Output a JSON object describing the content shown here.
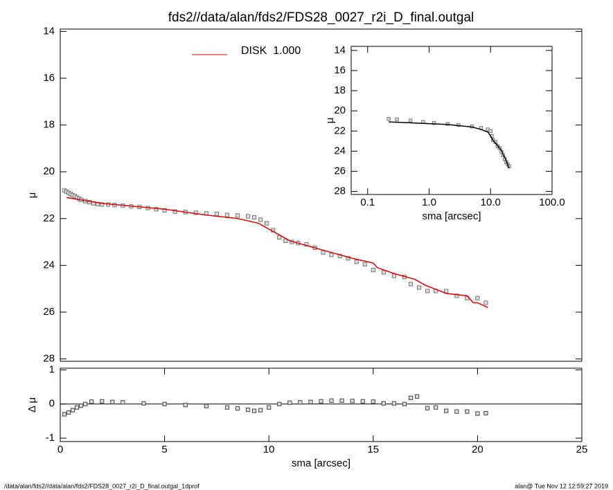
{
  "chart_data": [
    {
      "type": "scatter",
      "title": "fds2//data/alan/fds2/FDS28_0027_r2i_D_final.outgal",
      "ylabel": "μ",
      "xlim": [
        0,
        25
      ],
      "ylim": [
        28.1,
        13.9
      ],
      "yticks": [
        14,
        16,
        18,
        20,
        22,
        24,
        26,
        28
      ],
      "legend": "top",
      "series": [
        {
          "type": "marker",
          "color": "#777777",
          "x": [
            0.2,
            0.3,
            0.4,
            0.5,
            0.6,
            0.7,
            0.8,
            0.9,
            1.0,
            1.2,
            1.4,
            1.6,
            1.8,
            2.0,
            2.3,
            2.6,
            3.0,
            3.4,
            3.8,
            4.2,
            4.6,
            5.0,
            5.5,
            6.0,
            6.5,
            7.0,
            7.5,
            8.0,
            8.5,
            9.0,
            9.3,
            9.6,
            9.9,
            10.2,
            10.5,
            10.8,
            11.1,
            11.4,
            11.8,
            12.2,
            12.6,
            13.0,
            13.4,
            13.8,
            14.2,
            14.6,
            15.0,
            15.5,
            16.0,
            16.5,
            16.8,
            17.2,
            17.6,
            18.0,
            18.5,
            19.0,
            19.5,
            20.0,
            20.4
          ],
          "values": [
            20.8,
            20.85,
            20.9,
            20.95,
            21.0,
            21.05,
            21.1,
            21.15,
            21.2,
            21.25,
            21.3,
            21.35,
            21.38,
            21.4,
            21.4,
            21.42,
            21.45,
            21.48,
            21.5,
            21.55,
            21.6,
            21.65,
            21.7,
            21.72,
            21.75,
            21.78,
            21.8,
            21.85,
            21.87,
            21.9,
            21.95,
            22.05,
            22.2,
            22.5,
            22.8,
            22.95,
            23.0,
            23.05,
            23.1,
            23.25,
            23.45,
            23.55,
            23.6,
            23.7,
            23.85,
            23.95,
            24.2,
            24.3,
            24.45,
            24.5,
            24.8,
            24.95,
            25.1,
            25.1,
            25.1,
            25.3,
            25.4,
            25.4,
            25.6
          ]
        },
        {
          "type": "line",
          "name": "DISK  1.000",
          "color": "#e00000",
          "x": [
            0.3,
            2,
            5,
            7,
            8.5,
            9.5,
            10.5,
            11,
            12,
            13,
            14,
            15,
            15.2,
            16,
            17,
            17.5,
            18.5,
            19.5,
            19.8,
            20,
            20.5
          ],
          "values": [
            21.1,
            21.35,
            21.6,
            21.85,
            22.0,
            22.2,
            22.7,
            22.95,
            23.2,
            23.45,
            23.7,
            23.9,
            24.1,
            24.35,
            24.6,
            24.85,
            25.2,
            25.3,
            25.6,
            25.6,
            25.8
          ]
        }
      ]
    },
    {
      "type": "scatter",
      "xlabel": "sma [arcsec]",
      "ylabel": "μ",
      "xlog": true,
      "xlim": [
        0.054,
        100
      ],
      "ylim": [
        28.3,
        13.6
      ],
      "xticks": [
        {
          "value": 0.1,
          "label": "0.1"
        },
        {
          "value": 1,
          "label": "1.0"
        },
        {
          "value": 10,
          "label": "10.0"
        },
        {
          "value": 100,
          "label": "100.0"
        }
      ],
      "yticks": [
        14,
        16,
        18,
        20,
        22,
        24,
        26,
        28
      ],
      "series": [
        {
          "type": "marker",
          "color": "#777777",
          "x": [
            0.22,
            0.3,
            0.5,
            0.8,
            1.2,
            2,
            3,
            5,
            7,
            9,
            10,
            10.5,
            11,
            12,
            13,
            14,
            15,
            16,
            17,
            18,
            19,
            20
          ],
          "values": [
            20.8,
            20.85,
            20.95,
            21.1,
            21.2,
            21.3,
            21.4,
            21.55,
            21.7,
            21.85,
            22.0,
            22.5,
            22.9,
            23.1,
            23.5,
            23.7,
            24.1,
            24.4,
            24.8,
            25.1,
            25.3,
            25.5
          ]
        },
        {
          "type": "line",
          "color": "#000000",
          "x": [
            0.22,
            2,
            5,
            7,
            9,
            10,
            11,
            12,
            13,
            14,
            15,
            16,
            17,
            18,
            19,
            20
          ],
          "values": [
            21.1,
            21.35,
            21.6,
            21.85,
            22.1,
            22.5,
            22.95,
            23.2,
            23.45,
            23.7,
            23.9,
            24.35,
            24.6,
            25.0,
            25.3,
            25.7
          ]
        }
      ]
    },
    {
      "type": "scatter",
      "xlabel": "sma [arcsec]",
      "ylabel": "Δ μ",
      "zero_line": true,
      "xlim": [
        0,
        25
      ],
      "ylim": [
        -1.1,
        1.05
      ],
      "xticks": [
        0,
        5,
        10,
        15,
        20,
        25
      ],
      "yticks": [
        -1,
        0,
        1
      ],
      "series": [
        {
          "type": "marker",
          "color": "#444444",
          "x": [
            0.2,
            0.4,
            0.6,
            0.8,
            1.0,
            1.2,
            1.5,
            2.0,
            2.5,
            3.0,
            4.0,
            5.0,
            6.0,
            7.0,
            8.0,
            8.5,
            9.0,
            9.3,
            9.6,
            10.0,
            10.5,
            11.0,
            11.5,
            12.0,
            12.5,
            13.0,
            13.5,
            14.0,
            14.5,
            15.0,
            15.5,
            16.0,
            16.5,
            16.8,
            17.1,
            17.6,
            18.0,
            18.5,
            19.0,
            19.5,
            20.0,
            20.4
          ],
          "values": [
            -0.3,
            -0.25,
            -0.18,
            -0.1,
            -0.05,
            0.0,
            0.07,
            0.08,
            0.06,
            0.05,
            0.02,
            0.0,
            -0.03,
            -0.06,
            -0.1,
            -0.13,
            -0.17,
            -0.2,
            -0.18,
            -0.1,
            0.0,
            0.04,
            0.05,
            0.06,
            0.08,
            0.1,
            0.1,
            0.09,
            0.08,
            0.07,
            0.02,
            0.02,
            0.0,
            0.18,
            0.22,
            -0.12,
            -0.1,
            -0.2,
            -0.22,
            -0.22,
            -0.28,
            -0.27
          ]
        }
      ]
    }
  ],
  "footer": {
    "left": "/data/alan/fds2//data/alan/fds2/FDS28_0027_r2i_D_final.outgal_1dprof",
    "right": "alan@  Tue Nov 12 12:59:27 2019"
  }
}
